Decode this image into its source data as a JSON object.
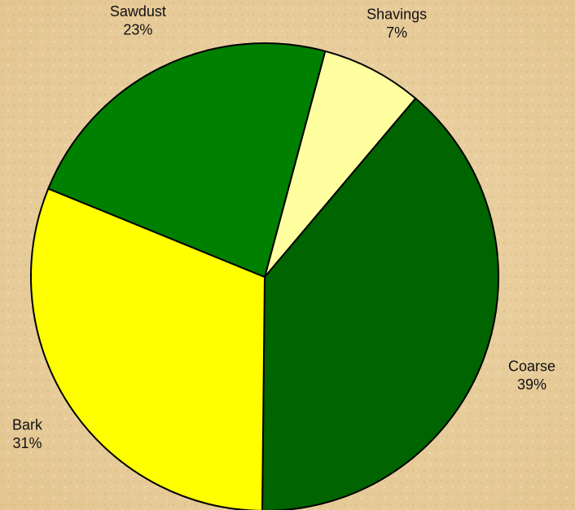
{
  "chart_data": {
    "type": "pie",
    "categories": [
      "Shavings",
      "Coarse",
      "Bark",
      "Sawdust"
    ],
    "values": [
      7,
      39,
      31,
      23
    ],
    "value_labels": [
      "7%",
      "39%",
      "31%",
      "23%"
    ],
    "colors": [
      "#ffffa0",
      "#006400",
      "#ffff00",
      "#008000"
    ]
  }
}
